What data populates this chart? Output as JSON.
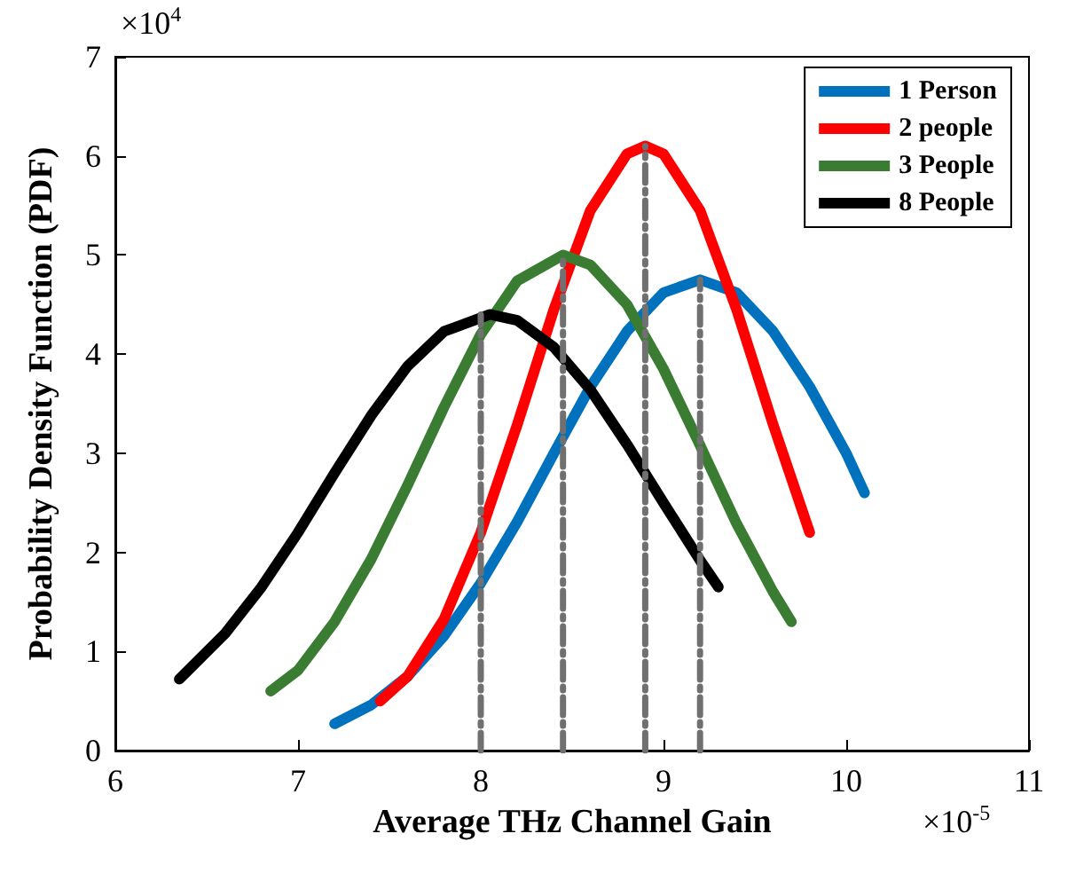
{
  "chart_data": {
    "type": "line",
    "xlabel": "Average THz Channel Gain",
    "ylabel": "Probability Density Function (PDF)",
    "annotations": [
      "×10$^{4}$",
      "×10$^{-5}$"
    ],
    "xlim": [
      6,
      11
    ],
    "xticks": [
      6,
      7,
      8,
      9,
      10,
      11
    ],
    "ylim": [
      0,
      7
    ],
    "yticks": [
      0,
      1,
      2,
      3,
      4,
      5,
      6,
      7
    ],
    "grid": false,
    "legend": "top right",
    "marker": "none",
    "line_style": "solid",
    "series": [
      {
        "name": "1 Person",
        "color": "#0072bd",
        "x": [
          7.2,
          7.4,
          7.6,
          7.8,
          8.0,
          8.2,
          8.4,
          8.6,
          8.8,
          9.0,
          9.2,
          9.4,
          9.6,
          9.8,
          10.0,
          10.1
        ],
        "values": [
          0.27,
          0.46,
          0.75,
          1.16,
          1.69,
          2.31,
          3.0,
          3.67,
          4.23,
          4.62,
          4.75,
          4.62,
          4.23,
          3.67,
          3.0,
          2.6
        ]
      },
      {
        "name": "2 people",
        "color": "#ff0000",
        "x": [
          7.45,
          7.6,
          7.8,
          8.0,
          8.2,
          8.4,
          8.6,
          8.8,
          8.9,
          9.0,
          9.2,
          9.4,
          9.6,
          9.8
        ],
        "values": [
          0.5,
          0.75,
          1.33,
          2.2,
          3.29,
          4.45,
          5.45,
          6.02,
          6.1,
          6.02,
          5.45,
          4.45,
          3.29,
          2.2
        ]
      },
      {
        "name": "3 People",
        "color": "#3a7d32",
        "x": [
          6.85,
          7.0,
          7.2,
          7.4,
          7.6,
          7.8,
          8.0,
          8.2,
          8.45,
          8.6,
          8.8,
          9.0,
          9.2,
          9.4,
          9.6,
          9.7
        ],
        "values": [
          0.6,
          0.81,
          1.3,
          1.93,
          2.68,
          3.47,
          4.2,
          4.74,
          5.0,
          4.9,
          4.5,
          3.85,
          3.08,
          2.29,
          1.6,
          1.3
        ]
      },
      {
        "name": "8 People",
        "color": "#000000",
        "x": [
          6.35,
          6.6,
          6.8,
          7.0,
          7.2,
          7.4,
          7.6,
          7.8,
          8.05,
          8.2,
          8.4,
          8.6,
          8.8,
          9.0,
          9.2,
          9.3
        ],
        "values": [
          0.72,
          1.18,
          1.65,
          2.2,
          2.8,
          3.38,
          3.88,
          4.23,
          4.4,
          4.34,
          4.07,
          3.64,
          3.09,
          2.5,
          1.92,
          1.65
        ]
      },
      {
        "color": "#707070",
        "line_style": "dashed",
        "x": [
          8.0,
          8.0
        ],
        "values": [
          0,
          4.4
        ]
      },
      {
        "color": "#707070",
        "line_style": "dashed",
        "x": [
          8.45,
          8.45
        ],
        "values": [
          0,
          5.0
        ]
      },
      {
        "color": "#707070",
        "line_style": "dashed",
        "x": [
          8.9,
          8.9
        ],
        "values": [
          0,
          6.1
        ]
      },
      {
        "color": "#707070",
        "line_style": "dashed",
        "x": [
          9.2,
          9.2
        ],
        "values": [
          0,
          4.75
        ]
      }
    ]
  }
}
